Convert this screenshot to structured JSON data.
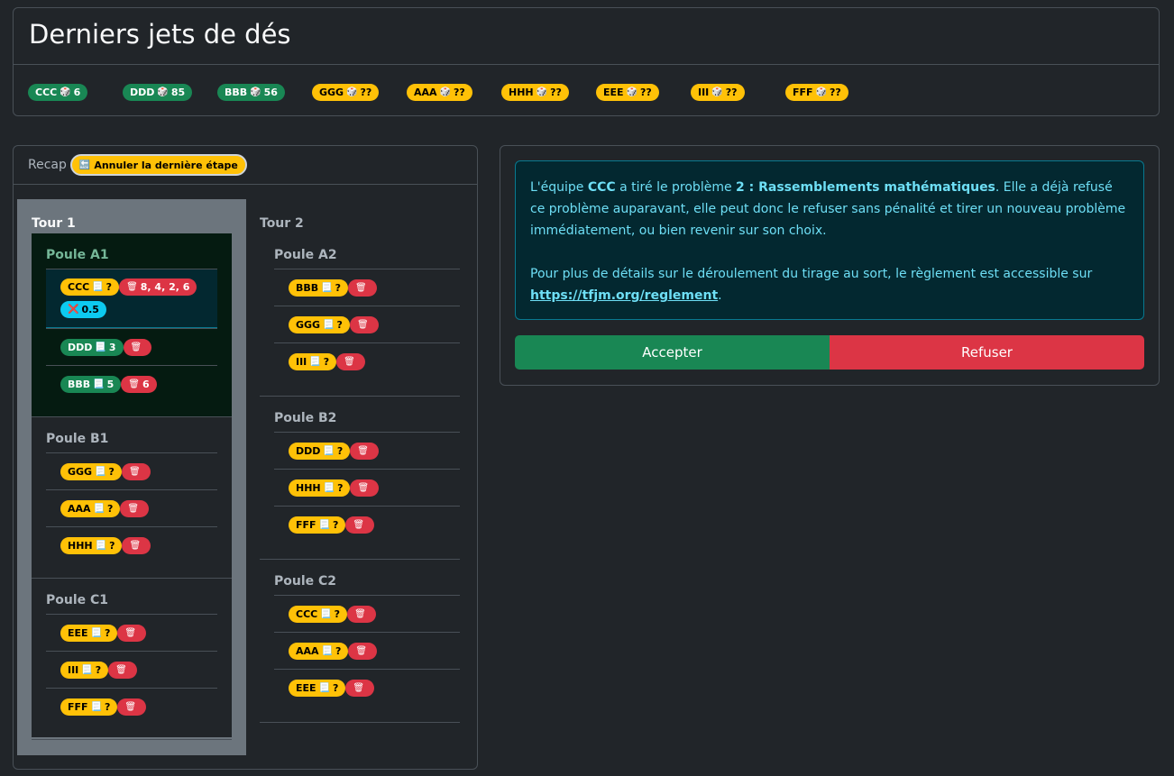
{
  "title": "Derniers jets de dés",
  "dice": [
    {
      "team": "CCC",
      "value": "6",
      "color": "g"
    },
    {
      "team": "DDD",
      "value": "85",
      "color": "g"
    },
    {
      "team": "BBB",
      "value": "56",
      "color": "g"
    },
    {
      "team": "GGG",
      "value": "??",
      "color": "y"
    },
    {
      "team": "AAA",
      "value": "??",
      "color": "y"
    },
    {
      "team": "HHH",
      "value": "??",
      "color": "y"
    },
    {
      "team": "EEE",
      "value": "??",
      "color": "y"
    },
    {
      "team": "III",
      "value": "??",
      "color": "y"
    },
    {
      "team": "FFF",
      "value": "??",
      "color": "y"
    }
  ],
  "icons": {
    "dice": "🎲",
    "problem": "📃",
    "refused": "🗑",
    "penalty": "❌",
    "back": "🔙"
  },
  "recap": {
    "label": "Recap",
    "undo": "Annuler la dernière étape"
  },
  "tours": [
    {
      "name": "Tour 1",
      "poules": [
        {
          "name": "Poule A1",
          "active": true,
          "teams": [
            {
              "name": "CCC",
              "problem": "?",
              "color": "y",
              "refused": "8, 4, 2, 6",
              "penalty": "0.5",
              "current": true
            },
            {
              "name": "DDD",
              "problem": "3",
              "color": "g",
              "refused": ""
            },
            {
              "name": "BBB",
              "problem": "5",
              "color": "g",
              "refused": "6"
            }
          ]
        },
        {
          "name": "Poule B1",
          "teams": [
            {
              "name": "GGG",
              "problem": "?",
              "color": "y",
              "refused": ""
            },
            {
              "name": "AAA",
              "problem": "?",
              "color": "y",
              "refused": ""
            },
            {
              "name": "HHH",
              "problem": "?",
              "color": "y",
              "refused": ""
            }
          ]
        },
        {
          "name": "Poule C1",
          "teams": [
            {
              "name": "EEE",
              "problem": "?",
              "color": "y",
              "refused": ""
            },
            {
              "name": "III",
              "problem": "?",
              "color": "y",
              "refused": ""
            },
            {
              "name": "FFF",
              "problem": "?",
              "color": "y",
              "refused": ""
            }
          ]
        }
      ]
    },
    {
      "name": "Tour 2",
      "poules": [
        {
          "name": "Poule A2",
          "teams": [
            {
              "name": "BBB",
              "problem": "?",
              "color": "y",
              "refused": ""
            },
            {
              "name": "GGG",
              "problem": "?",
              "color": "y",
              "refused": ""
            },
            {
              "name": "III",
              "problem": "?",
              "color": "y",
              "refused": ""
            }
          ]
        },
        {
          "name": "Poule B2",
          "teams": [
            {
              "name": "DDD",
              "problem": "?",
              "color": "y",
              "refused": ""
            },
            {
              "name": "HHH",
              "problem": "?",
              "color": "y",
              "refused": ""
            },
            {
              "name": "FFF",
              "problem": "?",
              "color": "y",
              "refused": ""
            }
          ]
        },
        {
          "name": "Poule C2",
          "teams": [
            {
              "name": "CCC",
              "problem": "?",
              "color": "y",
              "refused": ""
            },
            {
              "name": "AAA",
              "problem": "?",
              "color": "y",
              "refused": ""
            },
            {
              "name": "EEE",
              "problem": "?",
              "color": "y",
              "refused": ""
            }
          ]
        }
      ]
    }
  ],
  "message": {
    "p1a": "L'équipe ",
    "team": "CCC",
    "p1b": " a tiré le problème ",
    "problem": "2 : Rassemblements mathématiques",
    "p1c": ". Elle a déjà refusé ce problème auparavant, elle peut donc le refuser sans pénalité et tirer un nouveau problème immédiatement, ou bien revenir sur son choix.",
    "p2": "Pour plus de détails sur le déroulement du tirage au sort, le règlement est accessible sur ",
    "link": "https://tfjm.org/reglement",
    "p2end": "."
  },
  "buttons": {
    "accept": "Accepter",
    "refuse": "Refuser"
  }
}
